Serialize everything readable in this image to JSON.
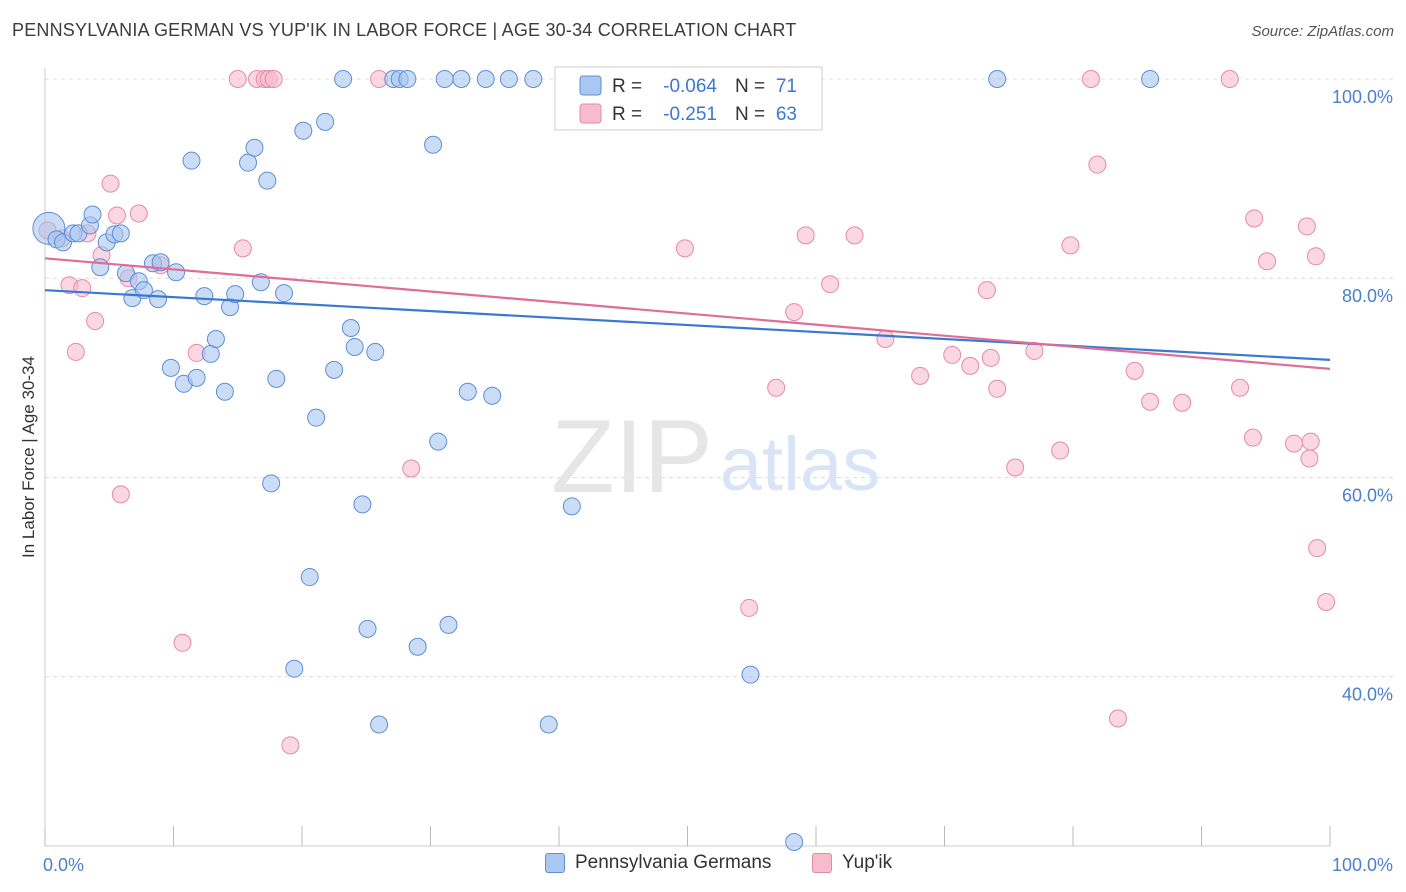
{
  "title": "PENNSYLVANIA GERMAN VS YUP'IK IN LABOR FORCE | AGE 30-34 CORRELATION CHART",
  "source": "Source: ZipAtlas.com",
  "watermark": {
    "zip": "ZIP",
    "atlas": "atlas"
  },
  "colors": {
    "blue_fill": "#a9c7f0",
    "blue_stroke": "#5d8fd6",
    "blue_line": "#3a78d1",
    "pink_fill": "#f6bccd",
    "pink_stroke": "#e58aa7",
    "pink_line": "#e06d96",
    "axis_text": "#4a7fd0",
    "grid": "#dcdcdc"
  },
  "legend_box": {
    "rows": [
      {
        "r_label": "R =",
        "r_value": "-0.064",
        "n_label": "N =",
        "n_value": "71"
      },
      {
        "r_label": "R =",
        "r_value": "-0.251",
        "n_label": "N =",
        "n_value": "63"
      }
    ]
  },
  "bottom_legend": [
    {
      "label": "Pennsylvania Germans"
    },
    {
      "label": "Yup'ik"
    }
  ],
  "chart_data": {
    "type": "scatter",
    "title": "PENNSYLVANIA GERMAN VS YUP'IK IN LABOR FORCE | AGE 30-34 CORRELATION CHART",
    "xlabel": "",
    "ylabel": "In Labor Force | Age 30-34",
    "xlim": [
      0,
      100
    ],
    "ylim": [
      23,
      100
    ],
    "x_tick_labels": [
      "0.0%",
      "100.0%"
    ],
    "y_ticks": [
      100,
      80,
      60,
      40
    ],
    "y_tick_labels": [
      "100.0%",
      "80.0%",
      "60.0%",
      "40.0%"
    ],
    "grid": true,
    "legend_position": "top-center",
    "series": [
      {
        "name": "Pennsylvania Germans",
        "trend": [
          [
            0,
            78.8
          ],
          [
            100,
            71.8
          ]
        ],
        "points": [
          [
            0.3,
            85.0,
            "big"
          ],
          [
            0.9,
            83.9
          ],
          [
            1.4,
            83.6
          ],
          [
            2.2,
            84.5
          ],
          [
            2.6,
            84.5
          ],
          [
            3.5,
            85.3
          ],
          [
            3.7,
            86.4
          ],
          [
            4.3,
            81.1
          ],
          [
            4.8,
            83.6
          ],
          [
            5.4,
            84.4
          ],
          [
            5.9,
            84.5
          ],
          [
            6.3,
            80.5
          ],
          [
            6.8,
            78.0
          ],
          [
            7.3,
            79.7
          ],
          [
            7.7,
            78.8
          ],
          [
            8.4,
            81.5
          ],
          [
            8.8,
            77.9
          ],
          [
            9.0,
            81.6
          ],
          [
            9.8,
            71.0
          ],
          [
            10.2,
            80.6
          ],
          [
            10.8,
            69.4
          ],
          [
            11.4,
            91.8
          ],
          [
            11.8,
            70.0
          ],
          [
            12.4,
            78.2
          ],
          [
            12.9,
            72.4
          ],
          [
            13.3,
            73.9
          ],
          [
            14.0,
            68.6
          ],
          [
            14.4,
            77.1
          ],
          [
            14.8,
            78.4
          ],
          [
            15.8,
            91.6
          ],
          [
            16.3,
            93.1
          ],
          [
            16.8,
            79.6
          ],
          [
            17.3,
            89.8
          ],
          [
            17.6,
            59.4
          ],
          [
            18.0,
            69.9
          ],
          [
            18.6,
            78.5
          ],
          [
            19.4,
            40.8
          ],
          [
            20.1,
            94.8
          ],
          [
            20.6,
            50.0
          ],
          [
            21.1,
            66.0
          ],
          [
            21.8,
            95.7
          ],
          [
            22.5,
            70.8
          ],
          [
            23.2,
            100.0
          ],
          [
            23.8,
            75.0
          ],
          [
            24.1,
            73.1
          ],
          [
            24.7,
            57.3
          ],
          [
            25.1,
            44.8
          ],
          [
            25.7,
            72.6
          ],
          [
            26.0,
            35.2
          ],
          [
            27.1,
            100.0
          ],
          [
            27.6,
            100.0
          ],
          [
            28.2,
            100.0
          ],
          [
            29.0,
            43.0
          ],
          [
            30.2,
            93.4
          ],
          [
            30.6,
            63.6
          ],
          [
            31.1,
            100.0
          ],
          [
            31.4,
            45.2
          ],
          [
            32.4,
            100.0
          ],
          [
            32.9,
            68.6
          ],
          [
            34.3,
            100.0
          ],
          [
            34.8,
            68.2
          ],
          [
            36.1,
            100.0
          ],
          [
            38.0,
            100.0
          ],
          [
            39.2,
            35.2
          ],
          [
            41.0,
            57.1
          ],
          [
            50.3,
            100.0
          ],
          [
            54.9,
            40.2
          ],
          [
            58.3,
            23.4
          ],
          [
            59.8,
            100.0
          ],
          [
            74.1,
            100.0
          ],
          [
            86.0,
            100.0
          ]
        ]
      },
      {
        "name": "Yup'ik",
        "trend": [
          [
            0,
            82.0
          ],
          [
            100,
            70.9
          ]
        ],
        "points": [
          [
            0.2,
            84.8
          ],
          [
            1.3,
            84.0
          ],
          [
            1.9,
            79.3
          ],
          [
            2.4,
            72.6
          ],
          [
            2.9,
            79.0
          ],
          [
            3.3,
            84.5
          ],
          [
            3.9,
            75.7
          ],
          [
            4.4,
            82.3
          ],
          [
            5.1,
            89.5
          ],
          [
            5.6,
            86.3
          ],
          [
            5.9,
            58.3
          ],
          [
            6.5,
            80.0
          ],
          [
            7.3,
            86.5
          ],
          [
            9.0,
            81.3
          ],
          [
            10.7,
            43.4
          ],
          [
            11.8,
            72.5
          ],
          [
            15.0,
            100.0
          ],
          [
            15.4,
            83.0
          ],
          [
            16.5,
            100.0
          ],
          [
            17.1,
            100.0
          ],
          [
            17.4,
            100.0
          ],
          [
            17.8,
            100.0
          ],
          [
            19.1,
            33.1
          ],
          [
            26.0,
            100.0
          ],
          [
            28.5,
            60.9
          ],
          [
            41.7,
            100.0
          ],
          [
            49.8,
            83.0
          ],
          [
            54.8,
            46.9
          ],
          [
            56.9,
            69.0
          ],
          [
            57.9,
            100.0
          ],
          [
            58.3,
            76.6
          ],
          [
            59.2,
            84.3
          ],
          [
            61.1,
            79.4
          ],
          [
            63.0,
            84.3
          ],
          [
            65.4,
            73.9
          ],
          [
            68.1,
            70.2
          ],
          [
            70.6,
            72.3
          ],
          [
            72.0,
            71.2
          ],
          [
            73.3,
            78.8
          ],
          [
            73.6,
            72.0
          ],
          [
            74.1,
            68.9
          ],
          [
            75.5,
            61.0
          ],
          [
            77.0,
            72.7
          ],
          [
            79.0,
            62.7
          ],
          [
            79.8,
            83.3
          ],
          [
            81.4,
            100.0
          ],
          [
            81.9,
            91.4
          ],
          [
            83.5,
            35.8
          ],
          [
            84.8,
            70.7
          ],
          [
            86.0,
            67.6
          ],
          [
            88.5,
            67.5
          ],
          [
            92.2,
            100.0
          ],
          [
            93.0,
            69.0
          ],
          [
            94.0,
            64.0
          ],
          [
            94.1,
            86.0
          ],
          [
            95.1,
            81.7
          ],
          [
            97.2,
            63.4
          ],
          [
            98.2,
            85.2
          ],
          [
            98.4,
            61.9
          ],
          [
            98.5,
            63.6
          ],
          [
            98.9,
            82.2
          ],
          [
            99.0,
            52.9
          ],
          [
            99.7,
            47.5
          ]
        ]
      }
    ]
  }
}
